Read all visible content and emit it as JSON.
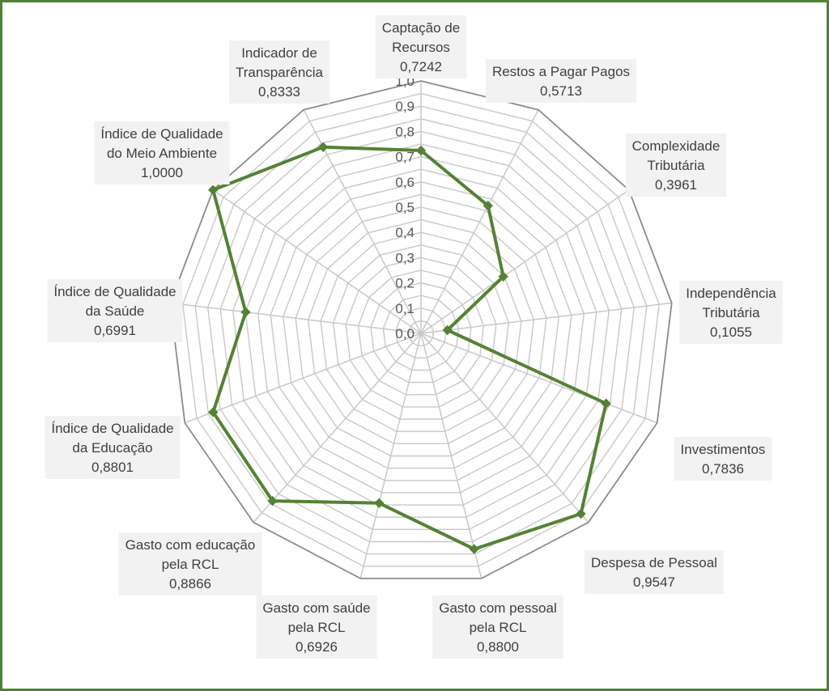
{
  "chart_data": {
    "type": "radar",
    "title": "",
    "rmin": 0.0,
    "rmax": 1.0,
    "ticks": [
      "0,0",
      "0,1",
      "0,2",
      "0,3",
      "0,4",
      "0,5",
      "0,6",
      "0,7",
      "0,8",
      "0,9",
      "1,0"
    ],
    "grid": true,
    "legend": "none",
    "categories": [
      {
        "lines": [
          "Captação de",
          "Recursos"
        ],
        "value": 0.7242,
        "value_label": "0,7242"
      },
      {
        "lines": [
          "Restos a Pagar Pagos"
        ],
        "value": 0.5713,
        "value_label": "0,5713"
      },
      {
        "lines": [
          "Complexidade",
          "Tributária"
        ],
        "value": 0.3961,
        "value_label": "0,3961"
      },
      {
        "lines": [
          "Independência",
          "Tributária"
        ],
        "value": 0.1055,
        "value_label": "0,1055"
      },
      {
        "lines": [
          "Investimentos"
        ],
        "value": 0.7836,
        "value_label": "0,7836"
      },
      {
        "lines": [
          "Despesa de Pessoal"
        ],
        "value": 0.9547,
        "value_label": "0,9547"
      },
      {
        "lines": [
          "Gasto com pessoal",
          "pela RCL"
        ],
        "value": 0.88,
        "value_label": "0,8800"
      },
      {
        "lines": [
          "Gasto com saúde",
          "pela RCL"
        ],
        "value": 0.6926,
        "value_label": "0,6926"
      },
      {
        "lines": [
          "Gasto com educação",
          "pela RCL"
        ],
        "value": 0.8866,
        "value_label": "0,8866"
      },
      {
        "lines": [
          "Índice de Qualidade",
          "da Educação"
        ],
        "value": 0.8801,
        "value_label": "0,8801"
      },
      {
        "lines": [
          "Índice de Qualidade",
          "da Saúde"
        ],
        "value": 0.6991,
        "value_label": "0,6991"
      },
      {
        "lines": [
          "Índice de Qualidade",
          "do Meio Ambiente"
        ],
        "value": 1.0,
        "value_label": "1,0000"
      },
      {
        "lines": [
          "Indicador de",
          "Transparência"
        ],
        "value": 0.8333,
        "value_label": "0,8333"
      }
    ],
    "colors": {
      "series": "#548235",
      "frame": "#4e8234",
      "outer_grid": "#8c8c8c",
      "grid": "#c8c8c8",
      "label_bg": "#f2f2f2"
    }
  }
}
